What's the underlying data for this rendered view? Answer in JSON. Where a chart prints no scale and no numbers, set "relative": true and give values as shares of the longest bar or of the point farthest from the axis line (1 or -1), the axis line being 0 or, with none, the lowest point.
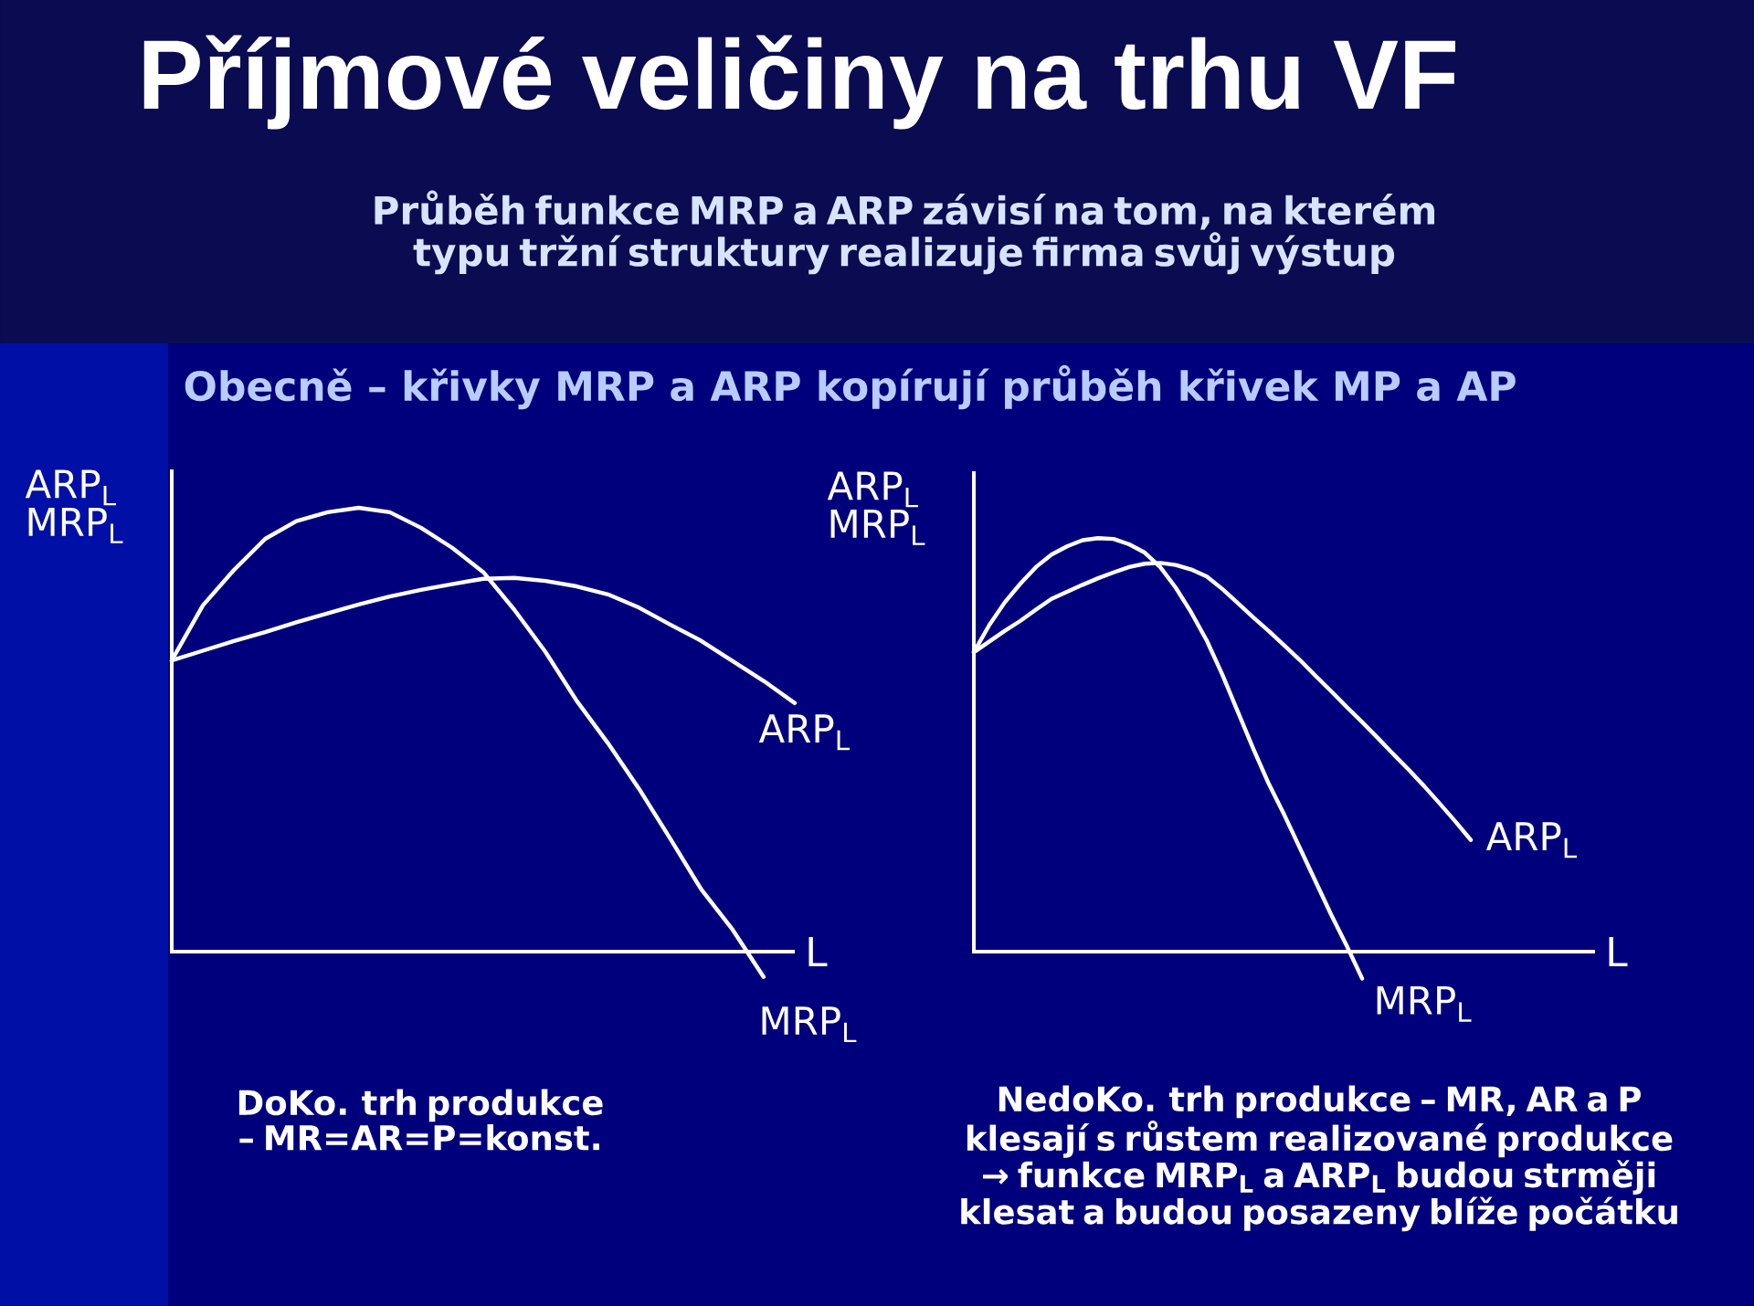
{
  "chart_data": [
    {
      "type": "line",
      "relative": true,
      "title": "Příjmové veličiny na trhu VF",
      "subtitle": "Průběh funkce MRP a ARP závisí na tom, na kterém typu tržní struktury realizuje firma svůj výstup",
      "xlabel": "L",
      "ylabel": "ARP$_{L}$ MRP$_{L}$",
      "annotations": [
        "Obecně – křivky MRP a ARP kopírují průběh křivek MP a AP",
        "DoKo. trh produkce – MR=AR=P=konst."
      ],
      "categories": [
        null,
        null,
        null,
        null,
        null,
        null,
        null,
        null,
        null,
        null,
        null,
        null,
        null,
        null,
        null,
        null,
        null,
        null,
        null,
        null,
        null
      ],
      "series": [
        {
          "name": "MRP$_{L}$",
          "color": "#ffffff",
          "values": [
            0.656,
            0.78,
            0.86,
            0.93,
            0.97,
            0.99,
            1,
            0.99,
            0.955,
            0.91,
            0.855,
            0.77,
            0.675,
            0.565,
            0.47,
            0.367,
            0.255,
            0.14,
            0.05,
            -0.057,
            null
          ]
        },
        {
          "name": "ARP$_{L}$",
          "color": "#ffffff",
          "values": [
            0.656,
            0.678,
            0.7,
            0.72,
            0.742,
            0.762,
            0.782,
            0.8,
            0.815,
            0.828,
            0.84,
            0.842,
            0.835,
            0.823,
            0.805,
            0.775,
            0.737,
            0.7,
            0.655,
            0.61,
            0.56
          ]
        }
      ]
    },
    {
      "type": "line",
      "relative": true,
      "xlabel": "L",
      "ylabel": "ARP$_{L}$ MRP$_{L}$",
      "annotations": [
        "NedoKo. trh produkce – MR, AR a P klesají s růstem realizované produkce → funkce MRP$_{L}$ a ARP$_{L}$ budou strměji klesat a budou posazeny blíže počátku"
      ],
      "categories": [
        null,
        null,
        null,
        null,
        null,
        null,
        null,
        null,
        null,
        null,
        null,
        null,
        null,
        null,
        null,
        null,
        null,
        null,
        null,
        null,
        null,
        null,
        null,
        null,
        null,
        null,
        null,
        null,
        null,
        null,
        null,
        null,
        null,
        null,
        null,
        null,
        null,
        null,
        null,
        null,
        null
      ],
      "series": [
        {
          "name": "MRP$_{L}$",
          "color": "#ffffff",
          "values": [
            0.724,
            0.79,
            0.845,
            0.89,
            0.93,
            0.96,
            0.98,
            0.995,
            1,
            0.998,
            0.985,
            0.965,
            0.93,
            0.88,
            0.82,
            0.752,
            0.67,
            0.58,
            0.49,
            0.405,
            0.33,
            0.25,
            0.17,
            0.09,
            0.015,
            -0.065,
            null,
            null,
            null,
            null,
            null,
            null,
            null,
            null,
            null,
            null,
            null,
            null,
            null,
            null,
            null
          ]
        },
        {
          "name": "ARP$_{L}$",
          "color": "#ffffff",
          "values": [
            0.724,
            0.75,
            0.776,
            0.8,
            0.827,
            0.853,
            0.87,
            0.887,
            0.903,
            0.917,
            0.93,
            0.938,
            0.94,
            0.935,
            0.924,
            0.907,
            0.877,
            0.843,
            0.808,
            0.775,
            0.74,
            0.705,
            0.667,
            0.63,
            0.592,
            0.555,
            0.517,
            0.478,
            0.44,
            0.4,
            0.358,
            0.315,
            0.27,
            null,
            null,
            null,
            null,
            null,
            null,
            null,
            null
          ]
        }
      ]
    }
  ]
}
